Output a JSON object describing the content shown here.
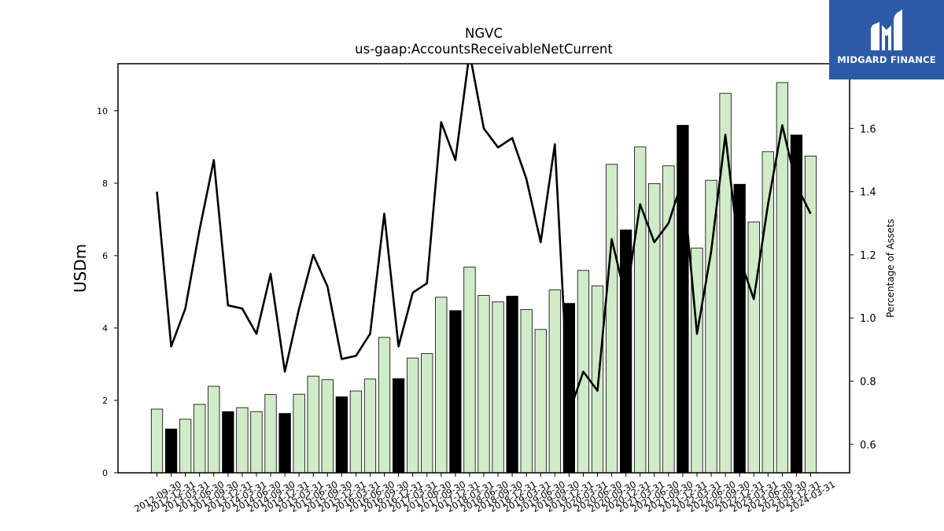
{
  "chart_data": {
    "type": "bar",
    "title": "NGVC",
    "subtitle": "us-gaap:AccountsReceivableNetCurrent",
    "ylabel": "USDm",
    "y2label": "Percentage of Assets",
    "ylim": [
      0,
      11.3
    ],
    "y2lim": [
      0.51,
      1.805
    ],
    "yticks": [
      0,
      2,
      4,
      6,
      8,
      10
    ],
    "y2ticks": [
      0.6,
      0.8,
      1.0,
      1.2,
      1.4,
      1.6
    ],
    "bar_colors": {
      "normal": "#d0ebc8",
      "highlight": "#000000",
      "edge": "#000000"
    },
    "line_color": "#000000",
    "categories": [
      "2012-09-30",
      "2012-12-31",
      "2013-03-31",
      "2013-06-30",
      "2013-09-30",
      "2013-12-31",
      "2014-03-31",
      "2014-06-30",
      "2014-09-30",
      "2014-12-31",
      "2015-03-31",
      "2015-06-30",
      "2015-09-30",
      "2015-12-31",
      "2016-03-31",
      "2016-06-30",
      "2016-09-30",
      "2016-12-31",
      "2017-03-31",
      "2017-06-30",
      "2017-09-30",
      "2017-12-31",
      "2018-03-31",
      "2018-06-30",
      "2018-09-30",
      "2018-12-31",
      "2019-03-31",
      "2019-06-30",
      "2019-09-30",
      "2019-12-31",
      "2020-03-31",
      "2020-06-30",
      "2020-09-30",
      "2020-12-31",
      "2021-03-31",
      "2021-06-30",
      "2021-09-30",
      "2021-12-31",
      "2022-03-31",
      "2022-06-30",
      "2022-09-30",
      "2022-12-31",
      "2023-03-31",
      "2023-06-30",
      "2023-09-30",
      "2023-12-31",
      "2024-03-31"
    ],
    "series": [
      {
        "kind": "bar",
        "axis": "left",
        "values": [
          1.76,
          1.21,
          1.48,
          1.89,
          2.39,
          1.69,
          1.8,
          1.69,
          2.16,
          1.64,
          2.17,
          2.67,
          2.57,
          2.1,
          2.26,
          2.59,
          3.74,
          2.6,
          3.17,
          3.29,
          4.85,
          4.48,
          5.68,
          4.9,
          4.72,
          4.88,
          4.51,
          3.96,
          5.05,
          4.68,
          5.59,
          5.16,
          8.52,
          6.71,
          9.0,
          7.99,
          8.48,
          9.6,
          6.21,
          8.08,
          10.48,
          7.97,
          6.93,
          8.87,
          10.78,
          9.33,
          8.75
        ],
        "highlighted": [
          false,
          true,
          false,
          false,
          false,
          true,
          false,
          false,
          false,
          true,
          false,
          false,
          false,
          true,
          false,
          false,
          false,
          true,
          false,
          false,
          false,
          true,
          false,
          false,
          false,
          true,
          false,
          false,
          false,
          true,
          false,
          false,
          false,
          true,
          false,
          false,
          false,
          true,
          false,
          false,
          false,
          true,
          false,
          false,
          false,
          true,
          false
        ]
      },
      {
        "kind": "line",
        "axis": "right",
        "values": [
          1.4,
          0.91,
          1.03,
          1.28,
          1.5,
          1.04,
          1.03,
          0.95,
          1.14,
          0.83,
          1.03,
          1.2,
          1.1,
          0.87,
          0.88,
          0.95,
          1.33,
          0.91,
          1.08,
          1.11,
          1.62,
          1.5,
          1.84,
          1.6,
          1.54,
          1.57,
          1.44,
          1.24,
          1.55,
          0.7,
          0.83,
          0.77,
          1.25,
          1.06,
          1.36,
          1.24,
          1.3,
          1.44,
          0.95,
          1.21,
          1.58,
          1.19,
          1.06,
          1.36,
          1.61,
          1.42,
          1.33
        ]
      }
    ]
  },
  "logo": {
    "text": "MIDGARD FINANCE"
  }
}
